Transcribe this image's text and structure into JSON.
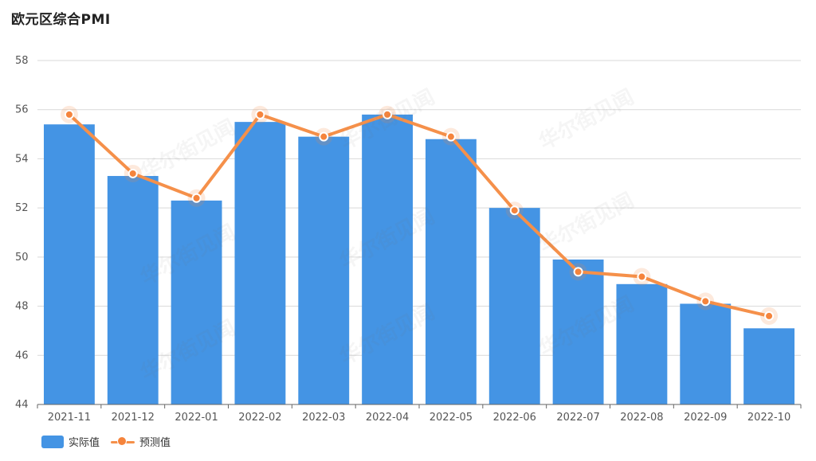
{
  "title": "欧元区综合PMI",
  "colors": {
    "bar": "#4494e4",
    "line": "#f5904a",
    "point": "#f5843c",
    "grid": "#d9d9d9",
    "axis": "#666666"
  },
  "watermark_text": "华尔街见闻",
  "legend": {
    "actual_label": "实际值",
    "forecast_label": "预测值"
  },
  "chart_data": {
    "type": "bar",
    "title": "欧元区综合PMI",
    "categories": [
      "2021-11",
      "2021-12",
      "2022-01",
      "2022-02",
      "2022-03",
      "2022-04",
      "2022-05",
      "2022-06",
      "2022-07",
      "2022-08",
      "2022-09",
      "2022-10"
    ],
    "series": [
      {
        "name": "实际值",
        "type": "bar",
        "values": [
          55.4,
          53.3,
          52.3,
          55.5,
          54.9,
          55.8,
          54.8,
          52.0,
          49.9,
          48.9,
          48.1,
          47.1
        ]
      },
      {
        "name": "预测值",
        "type": "line",
        "values": [
          55.8,
          53.4,
          52.4,
          55.8,
          54.9,
          55.8,
          54.9,
          51.9,
          49.4,
          49.2,
          48.2,
          47.6
        ]
      }
    ],
    "ylim": [
      44,
      58
    ],
    "yticks": [
      44,
      46,
      48,
      50,
      52,
      54,
      56,
      58
    ],
    "grid": true,
    "legend_position": "bottom-left"
  }
}
